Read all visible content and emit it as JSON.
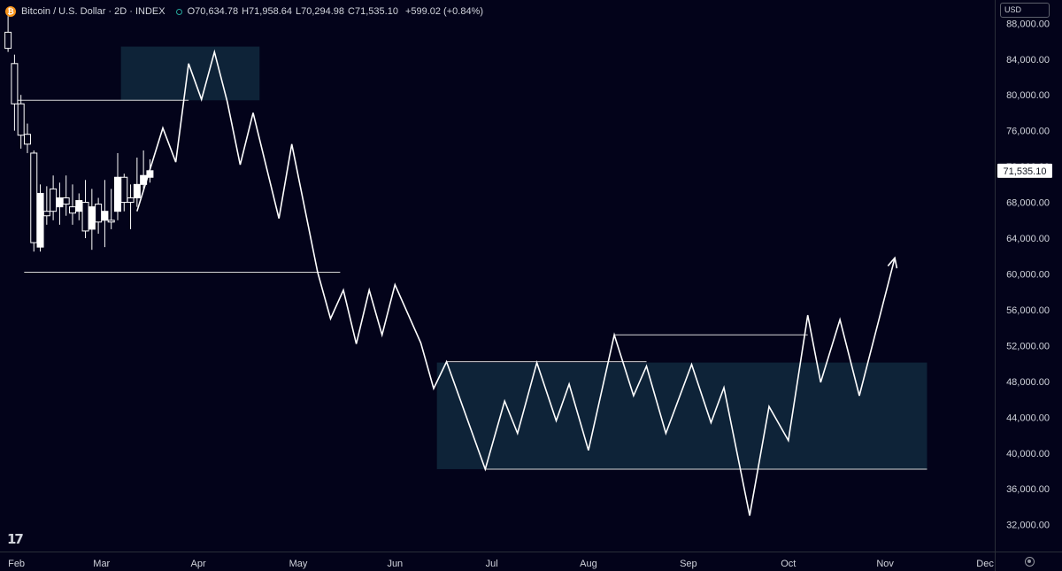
{
  "header": {
    "title": "Bitcoin / U.S. Dollar · 2D · INDEX",
    "open_label": "O",
    "open": "70,634.78",
    "high_label": "H",
    "high": "71,958.64",
    "low_label": "L",
    "low": "70,294.98",
    "close_label": "C",
    "close": "71,535.10",
    "change": "+599.02 (+0.84%)",
    "status_color": "#26a69a"
  },
  "currency": "USD",
  "last_price_label": "71,535.10",
  "icons": {
    "logo": "tradingview-logo-icon",
    "settings": "settings-gear-icon",
    "symbol": "bitcoin-icon"
  },
  "colors": {
    "background": "#03031a",
    "zone": "#0e2338",
    "line": "#ffffff",
    "text": "#d1d4dc"
  },
  "chart_data": {
    "type": "candlestick+line",
    "y_ticks": [
      88000,
      84000,
      80000,
      76000,
      72000,
      68000,
      64000,
      60000,
      56000,
      52000,
      48000,
      44000,
      40000,
      36000,
      32000
    ],
    "y_tick_labels": [
      "88,000.00",
      "84,000.00",
      "80,000.00",
      "76,000.00",
      "72,000.00",
      "68,000.00",
      "64,000.00",
      "60,000.00",
      "56,000.00",
      "52,000.00",
      "48,000.00",
      "44,000.00",
      "40,000.00",
      "36,000.00",
      "32,000.00"
    ],
    "ylim": [
      29000,
      90600
    ],
    "x_tick_labels": [
      "Feb",
      "Mar",
      "Apr",
      "May",
      "Jun",
      "Jul",
      "Aug",
      "Sep",
      "Oct",
      "Nov",
      "Dec"
    ],
    "x_tick_days": [
      0,
      29,
      59,
      90,
      120,
      150,
      180,
      211,
      242,
      272,
      303
    ],
    "xlim": [
      -2.5,
      306
    ],
    "last_price": 71535.1,
    "candles": [
      {
        "d": 0,
        "o": 87000,
        "h": 88800,
        "l": 84800,
        "c": 85200
      },
      {
        "d": 2,
        "o": 83500,
        "h": 84500,
        "l": 76000,
        "c": 79000
      },
      {
        "d": 4,
        "o": 79000,
        "h": 80000,
        "l": 74000,
        "c": 75500
      },
      {
        "d": 6,
        "o": 75600,
        "h": 76800,
        "l": 73500,
        "c": 74500
      },
      {
        "d": 8,
        "o": 73500,
        "h": 73800,
        "l": 62500,
        "c": 63500
      },
      {
        "d": 10,
        "o": 63000,
        "h": 70000,
        "l": 62500,
        "c": 69000
      },
      {
        "d": 12,
        "o": 67000,
        "h": 69800,
        "l": 65500,
        "c": 66500
      },
      {
        "d": 14,
        "o": 69500,
        "h": 71000,
        "l": 66000,
        "c": 67000
      },
      {
        "d": 16,
        "o": 67500,
        "h": 70200,
        "l": 65500,
        "c": 68500
      },
      {
        "d": 18,
        "o": 68500,
        "h": 71000,
        "l": 66500,
        "c": 67800
      },
      {
        "d": 20,
        "o": 67500,
        "h": 70000,
        "l": 65500,
        "c": 66800
      },
      {
        "d": 22,
        "o": 67000,
        "h": 69000,
        "l": 66000,
        "c": 68200
      },
      {
        "d": 24,
        "o": 68000,
        "h": 70500,
        "l": 64000,
        "c": 64800
      },
      {
        "d": 26,
        "o": 65000,
        "h": 69500,
        "l": 62700,
        "c": 67500
      },
      {
        "d": 28,
        "o": 67800,
        "h": 68500,
        "l": 64500,
        "c": 65800
      },
      {
        "d": 30,
        "o": 66000,
        "h": 70500,
        "l": 63000,
        "c": 67000
      },
      {
        "d": 32,
        "o": 66000,
        "h": 69500,
        "l": 65000,
        "c": 65800
      },
      {
        "d": 34,
        "o": 67000,
        "h": 73500,
        "l": 66000,
        "c": 70800
      },
      {
        "d": 36,
        "o": 70800,
        "h": 71200,
        "l": 67000,
        "c": 68000
      },
      {
        "d": 38,
        "o": 68500,
        "h": 70000,
        "l": 65000,
        "c": 68000
      },
      {
        "d": 40,
        "o": 68500,
        "h": 73000,
        "l": 67500,
        "c": 70000
      },
      {
        "d": 42,
        "o": 70000,
        "h": 73800,
        "l": 69500,
        "c": 71000
      },
      {
        "d": 44,
        "o": 70800,
        "h": 72800,
        "l": 70200,
        "c": 71535
      }
    ],
    "projection": [
      [
        40,
        67000
      ],
      [
        48,
        76300
      ],
      [
        52,
        72500
      ],
      [
        56,
        83500
      ],
      [
        60,
        79500
      ],
      [
        64,
        84800
      ],
      [
        68,
        79200
      ],
      [
        72,
        72200
      ],
      [
        76,
        78000
      ],
      [
        84,
        66200
      ],
      [
        88,
        74500
      ],
      [
        96,
        60200
      ],
      [
        100,
        55000
      ],
      [
        104,
        58200
      ],
      [
        108,
        52200
      ],
      [
        112,
        58200
      ],
      [
        116,
        53200
      ],
      [
        120,
        58800
      ],
      [
        128,
        52300
      ],
      [
        132,
        47200
      ],
      [
        136,
        50200
      ],
      [
        148,
        38200
      ],
      [
        154,
        45800
      ],
      [
        158,
        42200
      ],
      [
        164,
        50100
      ],
      [
        170,
        43600
      ],
      [
        174,
        47700
      ],
      [
        180,
        40300
      ],
      [
        188,
        53200
      ],
      [
        194,
        46400
      ],
      [
        198,
        49700
      ],
      [
        204,
        42200
      ],
      [
        212,
        49900
      ],
      [
        218,
        43400
      ],
      [
        222,
        47300
      ],
      [
        230,
        33000
      ],
      [
        236,
        45200
      ],
      [
        242,
        41400
      ],
      [
        248,
        55400
      ],
      [
        252,
        47900
      ],
      [
        258,
        54900
      ],
      [
        264,
        46400
      ],
      [
        275,
        61800
      ]
    ],
    "zones": [
      {
        "x0": 35,
        "x1": 78,
        "y0": 79400,
        "y1": 85400
      },
      {
        "x0": 133,
        "x1": 285,
        "y0": 38200,
        "y1": 50100
      }
    ],
    "levels": [
      {
        "x0": 2,
        "x1": 56,
        "y": 79400
      },
      {
        "x0": 5,
        "x1": 103,
        "y": 60200
      },
      {
        "x0": 136,
        "x1": 198,
        "y": 50200
      },
      {
        "x0": 188,
        "x1": 248,
        "y": 53200
      },
      {
        "x0": 148,
        "x1": 285,
        "y": 38200
      }
    ],
    "grid": false
  }
}
